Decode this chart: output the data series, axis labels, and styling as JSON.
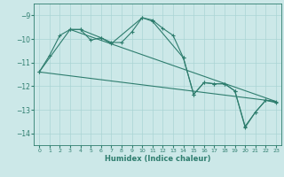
{
  "title": "",
  "xlabel": "Humidex (Indice chaleur)",
  "background_color": "#cce8e8",
  "grid_color": "#aad4d4",
  "line_color": "#2e7d6e",
  "xlim": [
    -0.5,
    23.5
  ],
  "ylim": [
    -14.5,
    -8.5
  ],
  "yticks": [
    -9,
    -10,
    -11,
    -12,
    -13,
    -14
  ],
  "xticks": [
    0,
    1,
    2,
    3,
    4,
    5,
    6,
    7,
    8,
    9,
    10,
    11,
    12,
    13,
    14,
    15,
    16,
    17,
    18,
    19,
    20,
    21,
    22,
    23
  ],
  "series1": {
    "x": [
      0,
      1,
      2,
      3,
      4,
      5,
      6,
      7,
      8,
      9,
      10,
      11,
      12,
      13,
      14,
      15,
      16,
      17,
      18,
      19,
      20,
      21,
      22,
      23
    ],
    "y": [
      -11.4,
      -10.7,
      -9.85,
      -9.6,
      -9.6,
      -10.05,
      -9.95,
      -10.15,
      -10.15,
      -9.7,
      -9.1,
      -9.2,
      -9.55,
      -9.85,
      -10.8,
      -12.35,
      -11.85,
      -11.9,
      -11.9,
      -12.2,
      -13.7,
      -13.1,
      -12.6,
      -12.7
    ]
  },
  "series2": {
    "x": [
      0,
      3,
      4,
      6,
      7,
      10,
      11,
      14,
      15,
      16,
      17,
      18,
      19,
      20,
      21,
      22,
      23
    ],
    "y": [
      -11.4,
      -9.6,
      -9.6,
      -9.95,
      -10.2,
      -9.1,
      -9.25,
      -10.8,
      -12.35,
      -11.85,
      -11.9,
      -11.9,
      -12.2,
      -13.75,
      -13.1,
      -12.6,
      -12.65
    ]
  },
  "line1": {
    "x": [
      0,
      23
    ],
    "y": [
      -11.4,
      -12.65
    ]
  },
  "line2": {
    "x": [
      3,
      23
    ],
    "y": [
      -9.6,
      -12.65
    ]
  }
}
